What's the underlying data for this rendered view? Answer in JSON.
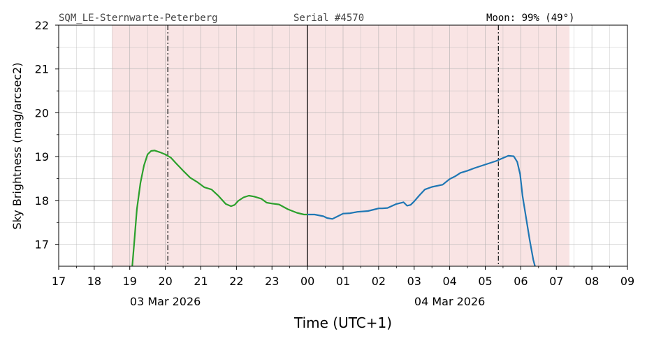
{
  "header": {
    "station": "SQM_LE-Sternwarte-Peterberg",
    "serial": "Serial #4570",
    "moon": "Moon: 99% (49°)"
  },
  "chart_data": {
    "type": "line",
    "xlabel": "Time (UTC+1)",
    "ylabel": "Sky Brightness (mag/arcsec2)",
    "xlim": [
      17,
      33
    ],
    "ylim": [
      16.5,
      22
    ],
    "x_tick_labels": [
      "17",
      "18",
      "19",
      "20",
      "21",
      "22",
      "23",
      "00",
      "01",
      "02",
      "03",
      "04",
      "05",
      "06",
      "07",
      "08",
      "09"
    ],
    "y_ticks": [
      17,
      18,
      19,
      20,
      21,
      22
    ],
    "date_labels": [
      {
        "text": "03 Mar 2026",
        "at": 20.0
      },
      {
        "text": "04 Mar 2026",
        "at": 28.0
      }
    ],
    "grid": true,
    "night_span": [
      18.5,
      31.37
    ],
    "midnight": 24.0,
    "twilight_lines": [
      20.07,
      29.37
    ],
    "colors": {
      "night_fill": "#f9e4e4",
      "evening": "#2ca02c",
      "morning": "#1f77b4",
      "grid": "#b0b0b0"
    },
    "series": [
      {
        "color": "#2ca02c",
        "x": [
          19.07,
          19.12,
          19.2,
          19.3,
          19.4,
          19.5,
          19.6,
          19.7,
          19.85,
          20.0,
          20.15,
          20.3,
          20.5,
          20.7,
          20.9,
          21.1,
          21.3,
          21.5,
          21.7,
          21.85,
          21.95,
          22.05,
          22.2,
          22.35,
          22.5,
          22.7,
          22.85,
          23.0,
          23.2,
          23.45,
          23.7,
          23.9,
          24.0
        ],
        "y": [
          16.5,
          17.0,
          17.8,
          18.4,
          18.8,
          19.05,
          19.13,
          19.14,
          19.1,
          19.05,
          18.98,
          18.85,
          18.68,
          18.52,
          18.42,
          18.3,
          18.25,
          18.1,
          17.92,
          17.87,
          17.9,
          17.99,
          18.07,
          18.11,
          18.09,
          18.04,
          17.95,
          17.93,
          17.91,
          17.8,
          17.72,
          17.68,
          17.68
        ]
      },
      {
        "color": "#1f77b4",
        "x": [
          24.0,
          24.2,
          24.45,
          24.55,
          24.7,
          24.85,
          25.0,
          25.2,
          25.4,
          25.7,
          25.9,
          26.0,
          26.1,
          26.25,
          26.5,
          26.7,
          26.8,
          26.9,
          27.0,
          27.15,
          27.3,
          27.5,
          27.8,
          28.0,
          28.15,
          28.3,
          28.5,
          28.7,
          29.0,
          29.3,
          29.5,
          29.65,
          29.8,
          29.9,
          29.98,
          30.05,
          30.15,
          30.25,
          30.35,
          30.4
        ],
        "y": [
          17.68,
          17.68,
          17.64,
          17.6,
          17.58,
          17.64,
          17.7,
          17.71,
          17.74,
          17.76,
          17.8,
          17.82,
          17.82,
          17.83,
          17.92,
          17.96,
          17.88,
          17.9,
          17.98,
          18.12,
          18.25,
          18.31,
          18.36,
          18.49,
          18.55,
          18.63,
          18.68,
          18.74,
          18.82,
          18.9,
          18.97,
          19.02,
          19.01,
          18.88,
          18.6,
          18.1,
          17.6,
          17.1,
          16.65,
          16.5
        ]
      }
    ]
  }
}
